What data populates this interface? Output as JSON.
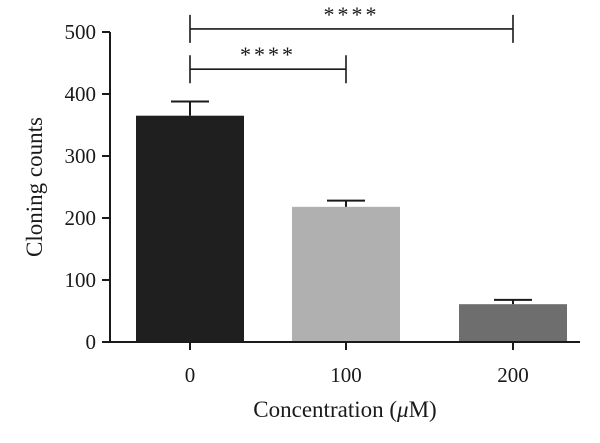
{
  "chart_data": {
    "type": "bar",
    "xlabel": "Concentration (",
    "xlabel_unit_symbol": "μ",
    "xlabel_unit_rest": "M)",
    "ylabel": "Cloning counts",
    "categories": [
      "0",
      "100",
      "200"
    ],
    "values": [
      365,
      218,
      61
    ],
    "errors": [
      23,
      10,
      7
    ],
    "bar_colors": [
      "#1f1f1f",
      "#b0b0b0",
      "#6e6e6e"
    ],
    "ylim": [
      0,
      500
    ],
    "yticks": [
      "0",
      "100",
      "200",
      "300",
      "400",
      "500"
    ],
    "significance": [
      {
        "from": "0",
        "to": "100",
        "label": "****",
        "y": 440
      },
      {
        "from": "0",
        "to": "200",
        "label": "****",
        "y": 505
      }
    ],
    "grid": false,
    "legend": "none"
  }
}
